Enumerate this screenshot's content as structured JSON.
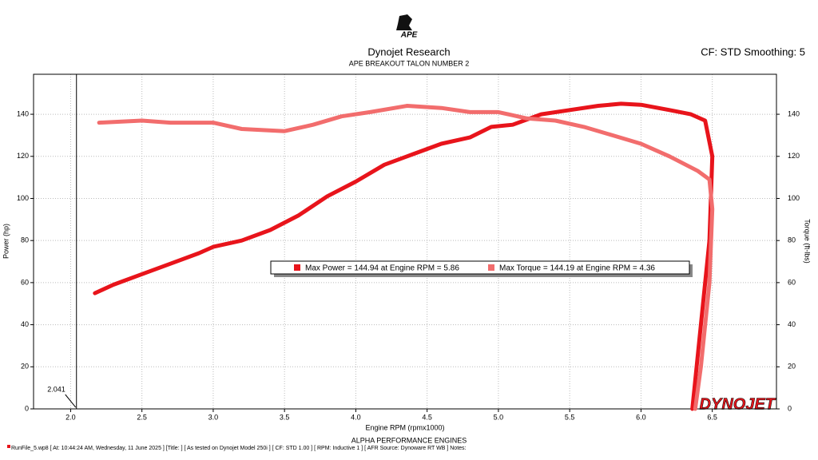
{
  "logo_text": "APE",
  "chart_data": {
    "type": "line",
    "title": "Dynojet Research",
    "subtitle": "APE BREAKOUT TALON NUMBER 2",
    "settings_text": "CF: STD Smoothing: 5",
    "xlabel": "Engine RPM (rpmx1000)",
    "ylabel": "Power (hp)",
    "y2label": "Torque (ft-lbs)",
    "footer": "ALPHA PERFORMANCE ENGINES",
    "run_info": "RunFile_5.wp8 [ At: 10:44:24 AM, Wednesday, 11 June 2025 ] [Title: ]  [ As tested on Dynojet Model 250i ] [ CF: STD 1.00 ] [ RPM: Inductive 1 ] [ AFR Source: Dynoware RT WB ] Notes:",
    "watermark": "DYNOJET",
    "cursor": 2.041,
    "grid": true,
    "xlim": [
      1.74,
      6.95
    ],
    "ylim": [
      0,
      159
    ],
    "y2lim": [
      0,
      159
    ],
    "xticks": [
      {
        "value": 2.0,
        "label": "2.0"
      },
      2.5,
      {
        "value": 3.0,
        "label": "3.0"
      },
      3.5,
      {
        "value": 4.0,
        "label": "4.0"
      },
      4.5,
      {
        "value": 5.0,
        "label": "5.0"
      },
      5.5,
      {
        "value": 6.0,
        "label": "6.0"
      },
      6.5
    ],
    "yticks": [
      0,
      20,
      40,
      60,
      80,
      100,
      120,
      140
    ],
    "y2ticks": [
      0,
      20,
      40,
      60,
      80,
      100,
      120,
      140
    ],
    "series": [
      {
        "name": "Max Power = 144.94 at Engine RPM = 5.86",
        "color": "#e8141b",
        "axis": "y",
        "x": [
          2.17,
          2.3,
          2.5,
          2.7,
          2.9,
          3.0,
          3.2,
          3.4,
          3.6,
          3.8,
          4.0,
          4.2,
          4.4,
          4.6,
          4.8,
          4.95,
          5.1,
          5.3,
          5.5,
          5.7,
          5.86,
          6.0,
          6.2,
          6.35,
          6.45,
          6.5,
          6.48,
          6.42,
          6.36
        ],
        "values": [
          55,
          59,
          64,
          69,
          74,
          77,
          80,
          85,
          92,
          101,
          108,
          116,
          121,
          126,
          129,
          134,
          135,
          140,
          142,
          144,
          145,
          144.5,
          142,
          140,
          137,
          120,
          80,
          40,
          0
        ]
      },
      {
        "name": "Max Torque = 144.19 at Engine RPM = 4.36",
        "color": "#f26d6d",
        "axis": "y2",
        "x": [
          2.2,
          2.5,
          2.7,
          3.0,
          3.2,
          3.5,
          3.7,
          3.9,
          4.1,
          4.36,
          4.6,
          4.8,
          5.0,
          5.2,
          5.4,
          5.6,
          5.8,
          6.0,
          6.2,
          6.4,
          6.48,
          6.5,
          6.48,
          6.42,
          6.38
        ],
        "values": [
          136,
          137,
          136,
          136,
          133,
          132,
          135,
          139,
          141,
          144,
          143,
          141,
          141,
          138,
          137,
          134,
          130,
          126,
          120,
          113,
          109,
          95,
          60,
          20,
          0
        ]
      }
    ]
  }
}
